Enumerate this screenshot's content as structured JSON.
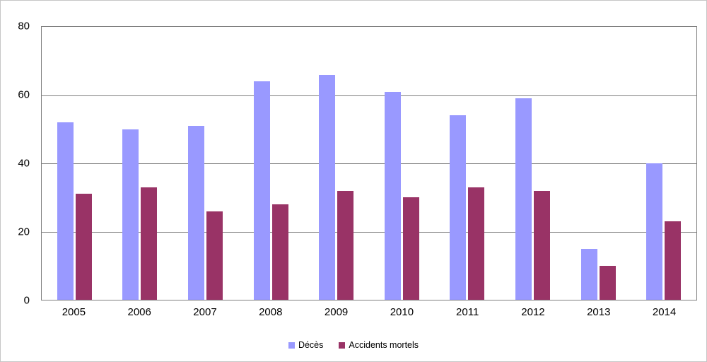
{
  "chart_data": {
    "type": "bar",
    "title": "",
    "categories": [
      "2005",
      "2006",
      "2007",
      "2008",
      "2009",
      "2010",
      "2011",
      "2012",
      "2013",
      "2014"
    ],
    "series": [
      {
        "name": "Décès",
        "color": "#9999FF",
        "values": [
          52,
          50,
          51,
          64,
          66,
          61,
          54,
          59,
          15,
          40
        ]
      },
      {
        "name": "Accidents mortels",
        "color": "#993366",
        "values": [
          31,
          33,
          26,
          28,
          32,
          30,
          33,
          32,
          10,
          23
        ]
      }
    ],
    "xlabel": "",
    "ylabel": "",
    "ylim": [
      0,
      80
    ],
    "yticks": [
      0,
      20,
      40,
      60,
      80
    ],
    "grid": true,
    "legend_position": "bottom",
    "colors": {
      "grid_line": "#7f7f7f",
      "plot_border": "#7f7f7f",
      "background": "#ffffff"
    }
  }
}
